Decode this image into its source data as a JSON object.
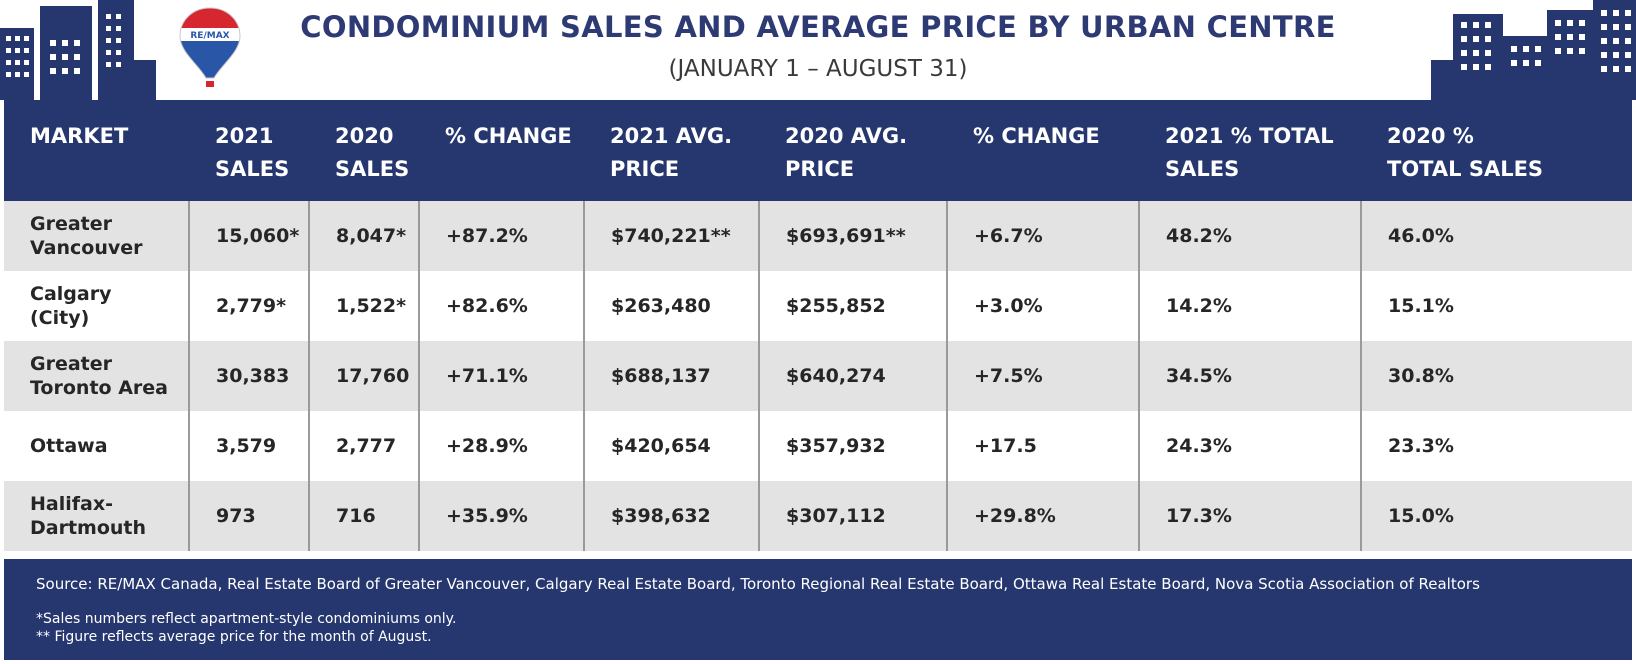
{
  "header": {
    "title": "CONDOMINIUM SALES AND AVERAGE PRICE BY URBAN CENTRE",
    "subtitle": "(JANUARY 1 – AUGUST 31)",
    "logo_text": "RE/MAX"
  },
  "colors": {
    "navy": "#26366e",
    "title_navy": "#2e3a74",
    "row_shade": "#e3e3e3",
    "logo_red": "#d6262f",
    "logo_blue": "#2a56a8"
  },
  "chart_data": {
    "type": "table",
    "title": "CONDOMINIUM SALES AND AVERAGE PRICE BY URBAN CENTRE",
    "subtitle": "(JANUARY 1 – AUGUST 31)",
    "columns": [
      [
        "MARKET"
      ],
      [
        "2021",
        "SALES"
      ],
      [
        "2020",
        "SALES"
      ],
      [
        "% CHANGE"
      ],
      [
        "2021 AVG.",
        "PRICE"
      ],
      [
        "2020 AVG.",
        "PRICE"
      ],
      [
        "% CHANGE"
      ],
      [
        "2021 % TOTAL",
        "SALES"
      ],
      [
        "2020 %",
        "TOTAL SALES"
      ]
    ],
    "rows": [
      [
        [
          "Greater",
          "Vancouver"
        ],
        [
          "15,060*"
        ],
        [
          "8,047*"
        ],
        [
          "+87.2%"
        ],
        [
          "$740,221**"
        ],
        [
          "$693,691**"
        ],
        [
          "+6.7%"
        ],
        [
          "48.2%"
        ],
        [
          "46.0%"
        ]
      ],
      [
        [
          "Calgary",
          "(City)"
        ],
        [
          "2,779*"
        ],
        [
          "1,522*"
        ],
        [
          "+82.6%"
        ],
        [
          "$263,480"
        ],
        [
          "$255,852"
        ],
        [
          "+3.0%"
        ],
        [
          "14.2%"
        ],
        [
          "15.1%"
        ]
      ],
      [
        [
          "Greater",
          "Toronto Area"
        ],
        [
          "30,383"
        ],
        [
          "17,760"
        ],
        [
          "+71.1%"
        ],
        [
          "$688,137"
        ],
        [
          "$640,274"
        ],
        [
          "+7.5%"
        ],
        [
          "34.5%"
        ],
        [
          "30.8%"
        ]
      ],
      [
        [
          "Ottawa"
        ],
        [
          "3,579"
        ],
        [
          "2,777"
        ],
        [
          "+28.9%"
        ],
        [
          "$420,654"
        ],
        [
          "$357,932"
        ],
        [
          "+17.5"
        ],
        [
          "24.3%"
        ],
        [
          "23.3%"
        ]
      ],
      [
        [
          "Halifax-",
          "Dartmouth"
        ],
        [
          "973"
        ],
        [
          "716"
        ],
        [
          "+35.9%"
        ],
        [
          "$398,632"
        ],
        [
          "$307,112"
        ],
        [
          "+29.8%"
        ],
        [
          "17.3%"
        ],
        [
          "15.0%"
        ]
      ]
    ]
  },
  "footer": {
    "source": "Source:  RE/MAX Canada, Real Estate Board of Greater Vancouver, Calgary Real Estate Board, Toronto Regional Real Estate Board, Ottawa Real Estate Board, Nova Scotia Association of Realtors",
    "note1": "*Sales numbers reflect apartment-style condominiums only.",
    "note2": "** Figure reflects average price for the month of August."
  }
}
